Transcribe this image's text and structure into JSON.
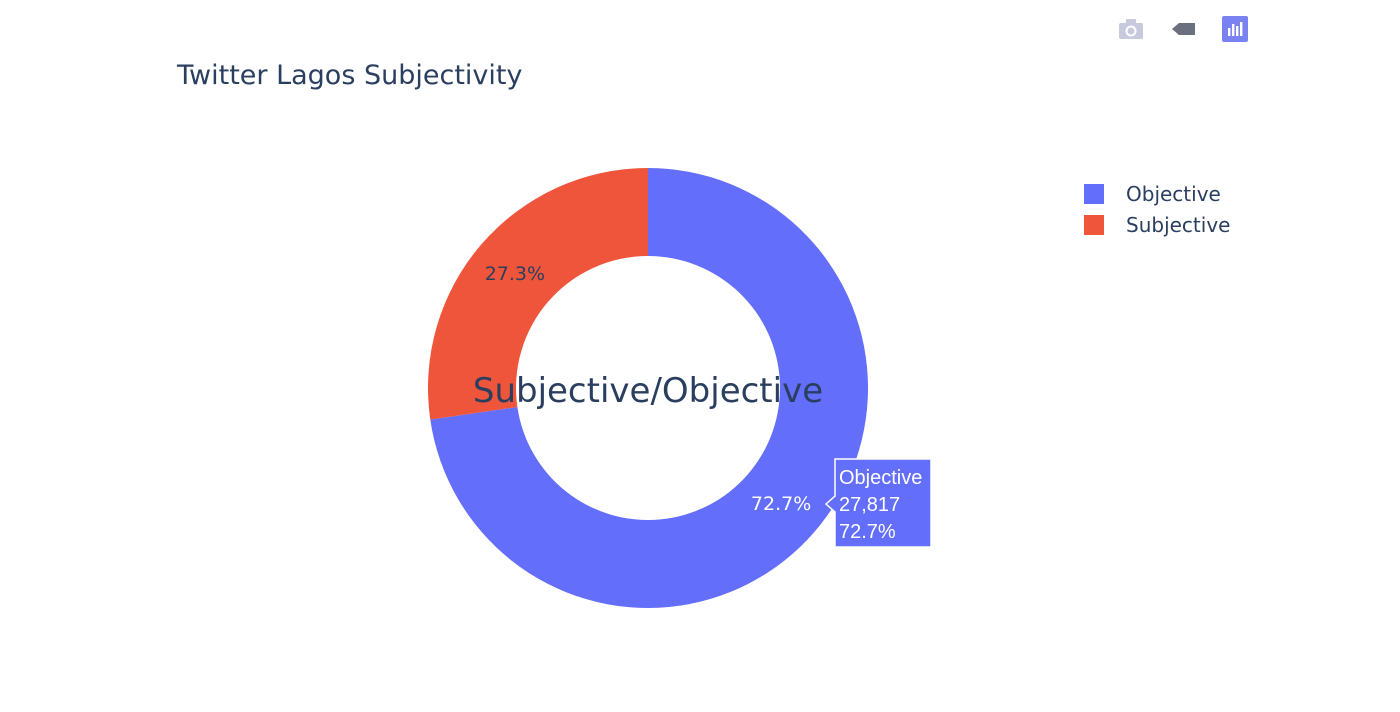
{
  "toolbar": {
    "buttons": [
      {
        "icon": "camera-icon",
        "label": "Download plot as a png"
      },
      {
        "icon": "autoscale-icon",
        "label": "Autoscale"
      },
      {
        "icon": "plotly-logo-icon",
        "label": "Produced with Plotly"
      }
    ]
  },
  "chart_data": {
    "type": "pie",
    "hole": 0.6,
    "title": "Twitter Lagos Subjectivity",
    "center_label": "Subjective/Objective",
    "labels": [
      "Objective",
      "Subjective"
    ],
    "values": [
      27817,
      10443
    ],
    "percent_labels": [
      "72.7%",
      "27.3%"
    ],
    "colors": [
      "#636efa",
      "#ef553b"
    ],
    "text_colors": [
      "#ffffff",
      "#2a3f5f"
    ],
    "legend": {
      "position": "right",
      "items": [
        "Objective",
        "Subjective"
      ]
    },
    "hover": {
      "label": "Objective",
      "value": "27,817",
      "percent": "72.7%"
    }
  }
}
